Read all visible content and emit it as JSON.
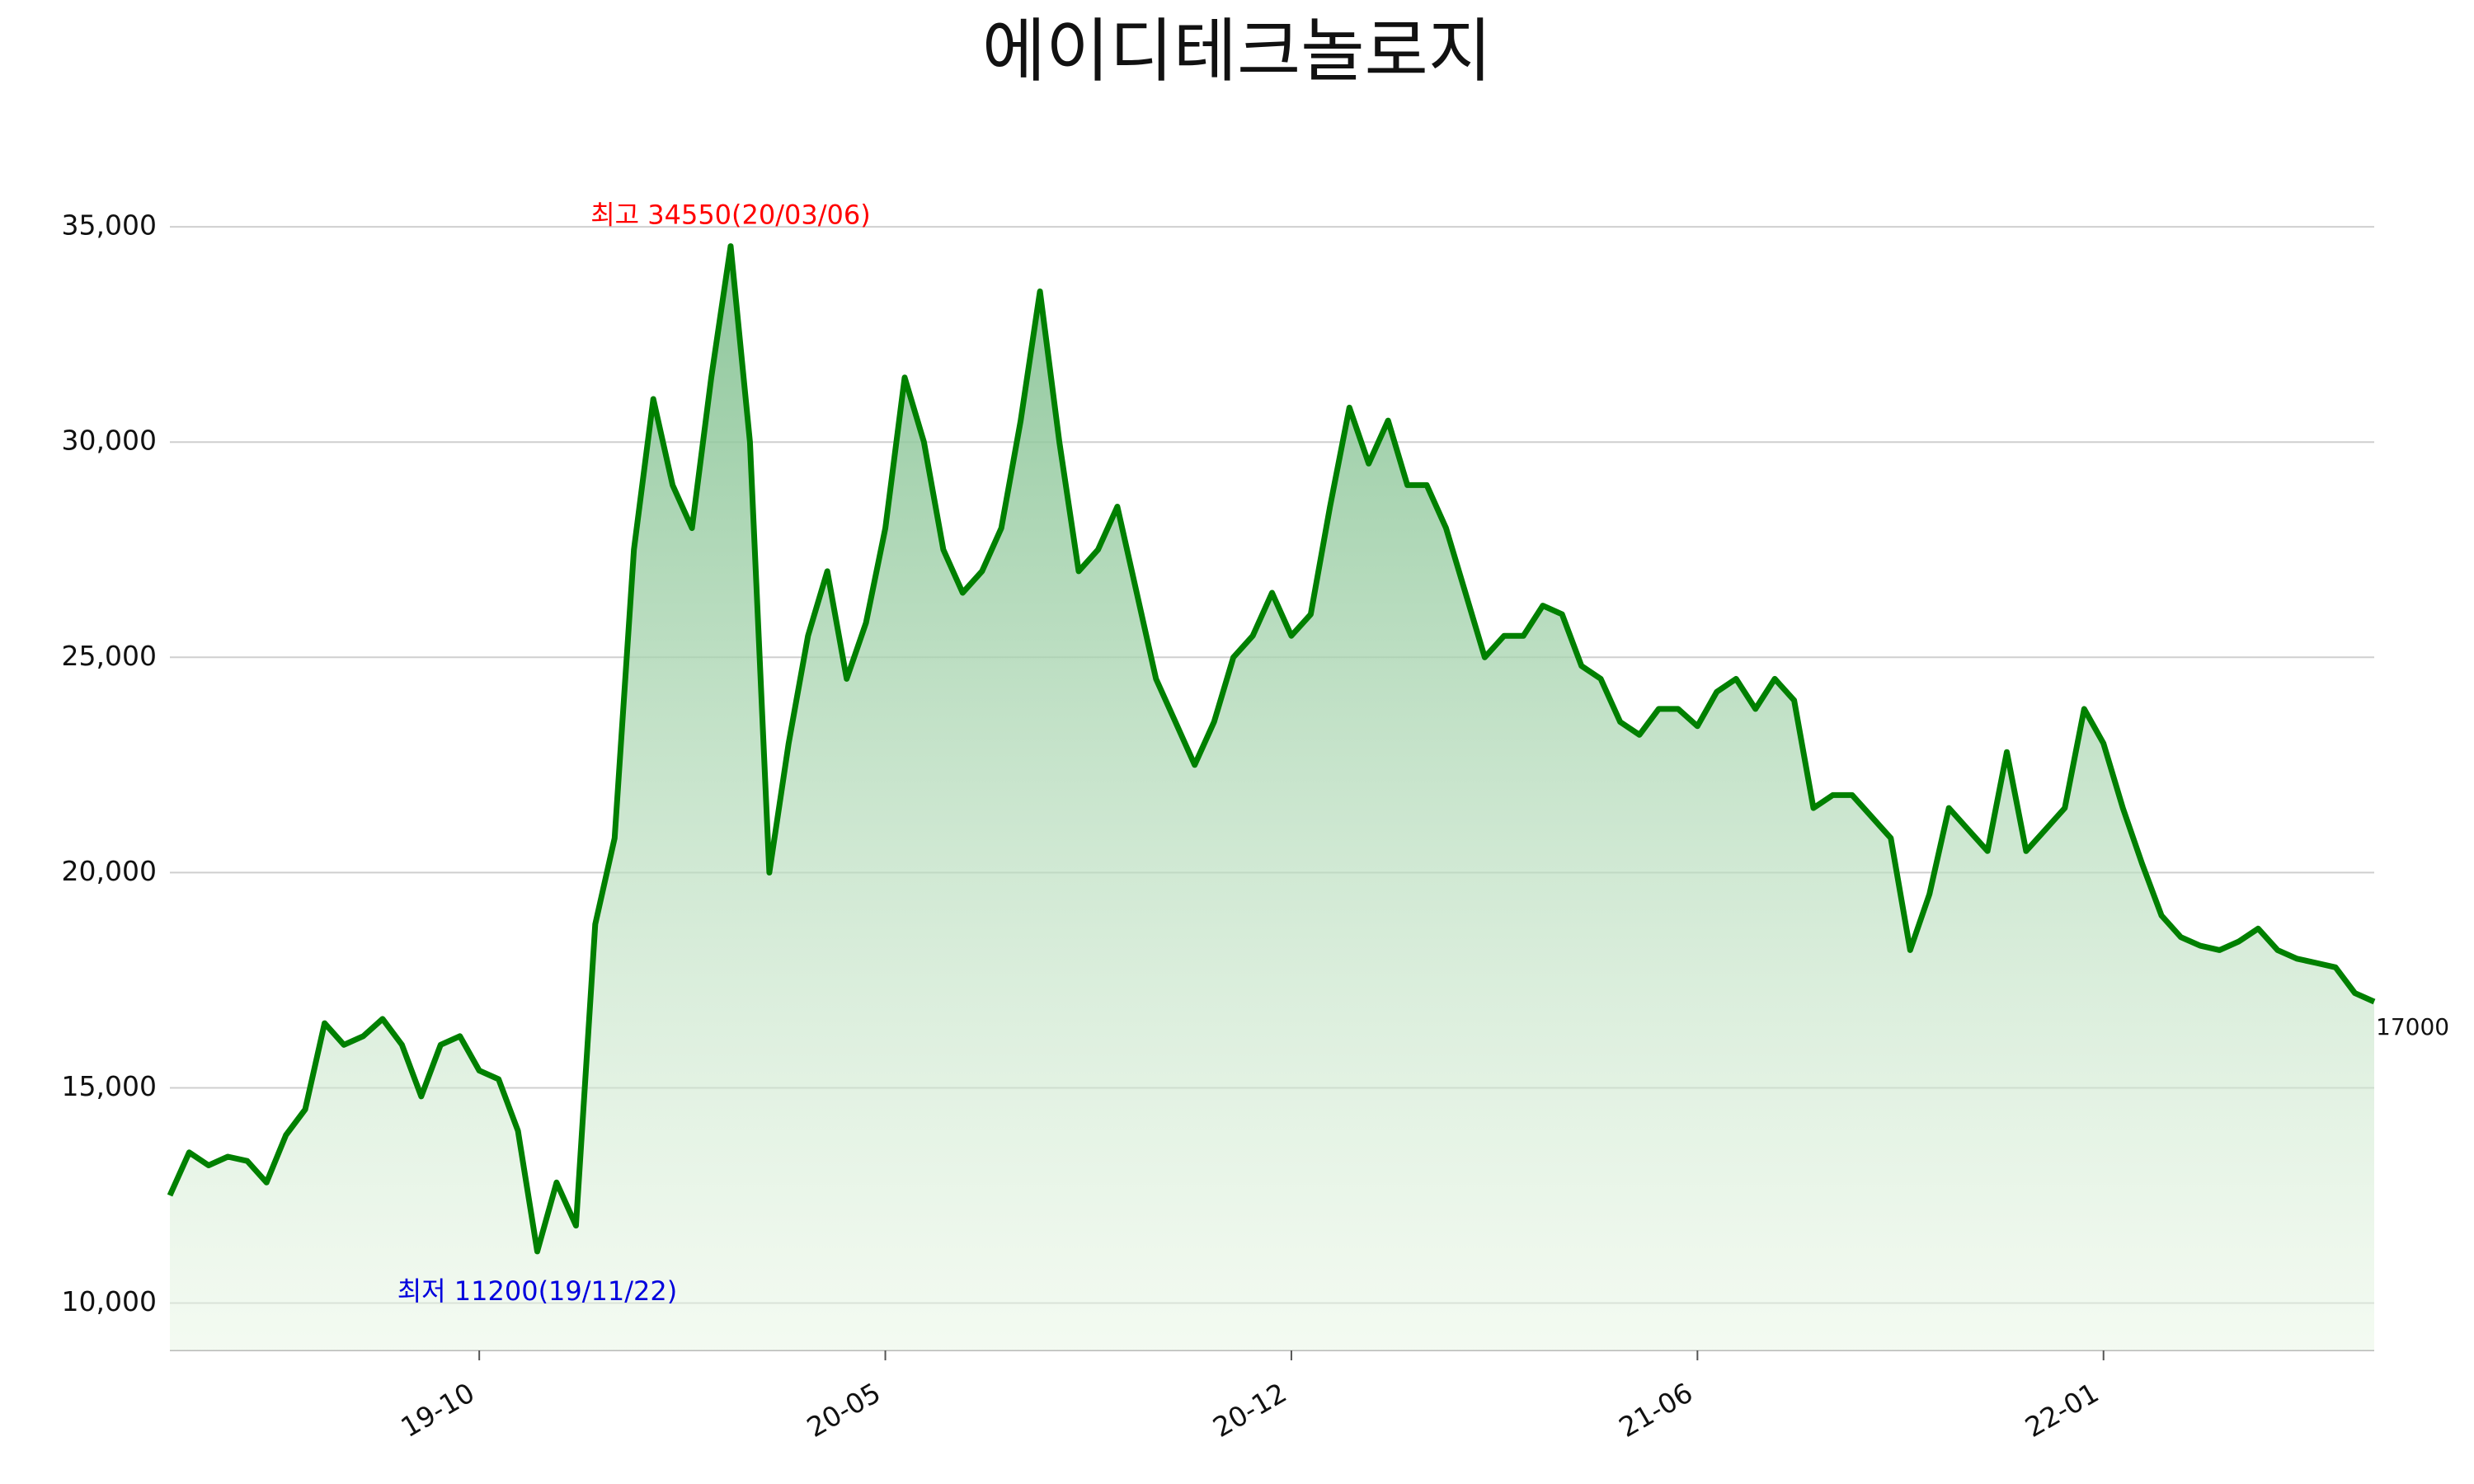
{
  "chart_data": {
    "type": "area-line",
    "title": "에이디테크놀로지",
    "categories": [
      null,
      null,
      null,
      null,
      null,
      null,
      null,
      null,
      null,
      null,
      null,
      null,
      null,
      null,
      null,
      null,
      "19-10",
      null,
      null,
      null,
      null,
      null,
      null,
      null,
      null,
      null,
      null,
      null,
      null,
      null,
      null,
      null,
      null,
      null,
      null,
      null,
      null,
      "20-05",
      null,
      null,
      null,
      null,
      null,
      null,
      null,
      null,
      null,
      null,
      null,
      null,
      null,
      null,
      null,
      null,
      null,
      null,
      null,
      null,
      "20-12",
      null,
      null,
      null,
      null,
      null,
      null,
      null,
      null,
      null,
      null,
      null,
      null,
      null,
      null,
      null,
      null,
      null,
      null,
      null,
      null,
      "21-06",
      null,
      null,
      null,
      null,
      null,
      null,
      null,
      null,
      null,
      null,
      null,
      null,
      null,
      null,
      null,
      null,
      null,
      null,
      null,
      null,
      "22-01",
      null,
      null,
      null,
      null,
      null,
      null,
      null,
      null,
      null,
      null,
      null,
      null,
      null,
      null
    ],
    "values": [
      12500,
      13500,
      13200,
      13400,
      13300,
      12800,
      13900,
      14500,
      16500,
      16000,
      16200,
      16600,
      16000,
      14800,
      16000,
      16200,
      15400,
      15200,
      14000,
      11200,
      12800,
      11800,
      18800,
      20800,
      27500,
      31000,
      29000,
      28000,
      31500,
      34550,
      30000,
      20000,
      23000,
      25500,
      27000,
      24500,
      25800,
      28000,
      31500,
      30000,
      27500,
      26500,
      27000,
      28000,
      30500,
      33500,
      30000,
      27000,
      27500,
      28500,
      26500,
      24500,
      23500,
      22500,
      23500,
      25000,
      25500,
      26500,
      25500,
      26000,
      28500,
      30800,
      29500,
      30500,
      29000,
      29000,
      28000,
      26500,
      25000,
      25500,
      25500,
      26200,
      26000,
      24800,
      24500,
      23500,
      23200,
      23800,
      23800,
      23400,
      24200,
      24500,
      23800,
      24500,
      24000,
      21500,
      21800,
      21800,
      21300,
      20800,
      18200,
      19500,
      21500,
      21000,
      20500,
      22800,
      20500,
      21000,
      21500,
      23800,
      23000,
      21500,
      20200,
      19000,
      18500,
      18300,
      18200,
      18400,
      18700,
      18200,
      18000,
      17900,
      17800,
      17200,
      17000
    ],
    "color": "#008000",
    "ylim": [
      8900,
      36400
    ],
    "yticks": [
      {
        "value": 10000,
        "label": "10,000"
      },
      {
        "value": 15000,
        "label": "15,000"
      },
      {
        "value": 20000,
        "label": "20,000"
      },
      {
        "value": 25000,
        "label": "25,000"
      },
      {
        "value": 30000,
        "label": "30,000"
      },
      {
        "value": 35000,
        "label": "35,000"
      }
    ],
    "grid": true,
    "annotations": {
      "max": "최고 34550(20/03/06)",
      "min": "최저 11200(19/11/22)"
    }
  }
}
